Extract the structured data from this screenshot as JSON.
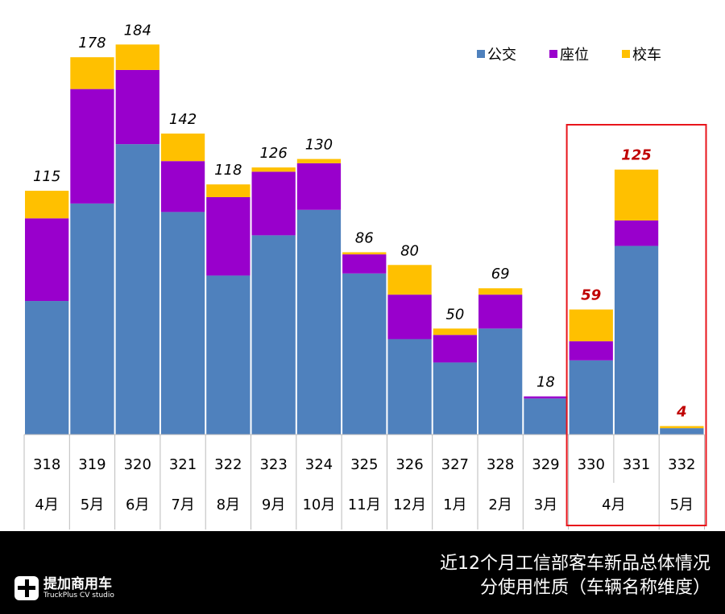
{
  "chart_data": {
    "type": "bar",
    "stacked": true,
    "categories": [
      "318",
      "319",
      "320",
      "321",
      "322",
      "323",
      "324",
      "325",
      "326",
      "327",
      "328",
      "329",
      "330",
      "331",
      "332"
    ],
    "month_groups": [
      {
        "label": "4月",
        "span": 1
      },
      {
        "label": "5月",
        "span": 1
      },
      {
        "label": "6月",
        "span": 1
      },
      {
        "label": "7月",
        "span": 1
      },
      {
        "label": "8月",
        "span": 1
      },
      {
        "label": "9月",
        "span": 1
      },
      {
        "label": "10月",
        "span": 1
      },
      {
        "label": "11月",
        "span": 1
      },
      {
        "label": "12月",
        "span": 1
      },
      {
        "label": "1月",
        "span": 1
      },
      {
        "label": "2月",
        "span": 1
      },
      {
        "label": "3月",
        "span": 1
      },
      {
        "label": "4月",
        "span": 2
      },
      {
        "label": "5月",
        "span": 1
      }
    ],
    "series": [
      {
        "name": "公交",
        "color": "#4F81BD",
        "values": [
          63,
          109,
          137,
          105,
          75,
          94,
          106,
          76,
          45,
          34,
          50,
          17,
          35,
          89,
          3
        ]
      },
      {
        "name": "座位",
        "color": "#9900CC",
        "values": [
          39,
          54,
          35,
          24,
          37,
          30,
          22,
          9,
          21,
          13,
          16,
          1,
          9,
          12,
          0
        ]
      },
      {
        "name": "校车",
        "color": "#FFC000",
        "values": [
          13,
          15,
          12,
          13,
          6,
          2,
          2,
          1,
          14,
          3,
          3,
          0,
          15,
          24,
          1
        ]
      }
    ],
    "totals": [
      115,
      178,
      184,
      142,
      118,
      126,
      130,
      86,
      80,
      50,
      69,
      18,
      59,
      125,
      4
    ],
    "highlight_categories": [
      "330",
      "331",
      "332"
    ],
    "highlight_color": "#E8141B",
    "ylim": [
      0,
      205
    ],
    "grid": false,
    "legend_position": "top-right"
  },
  "footer": {
    "title_line1": "近12个月工信部客车新品总体情况",
    "title_line2": "分使用性质（车辆名称维度）",
    "logo_cn": "提加商用车",
    "logo_en": "TruckPlus CV studio"
  }
}
